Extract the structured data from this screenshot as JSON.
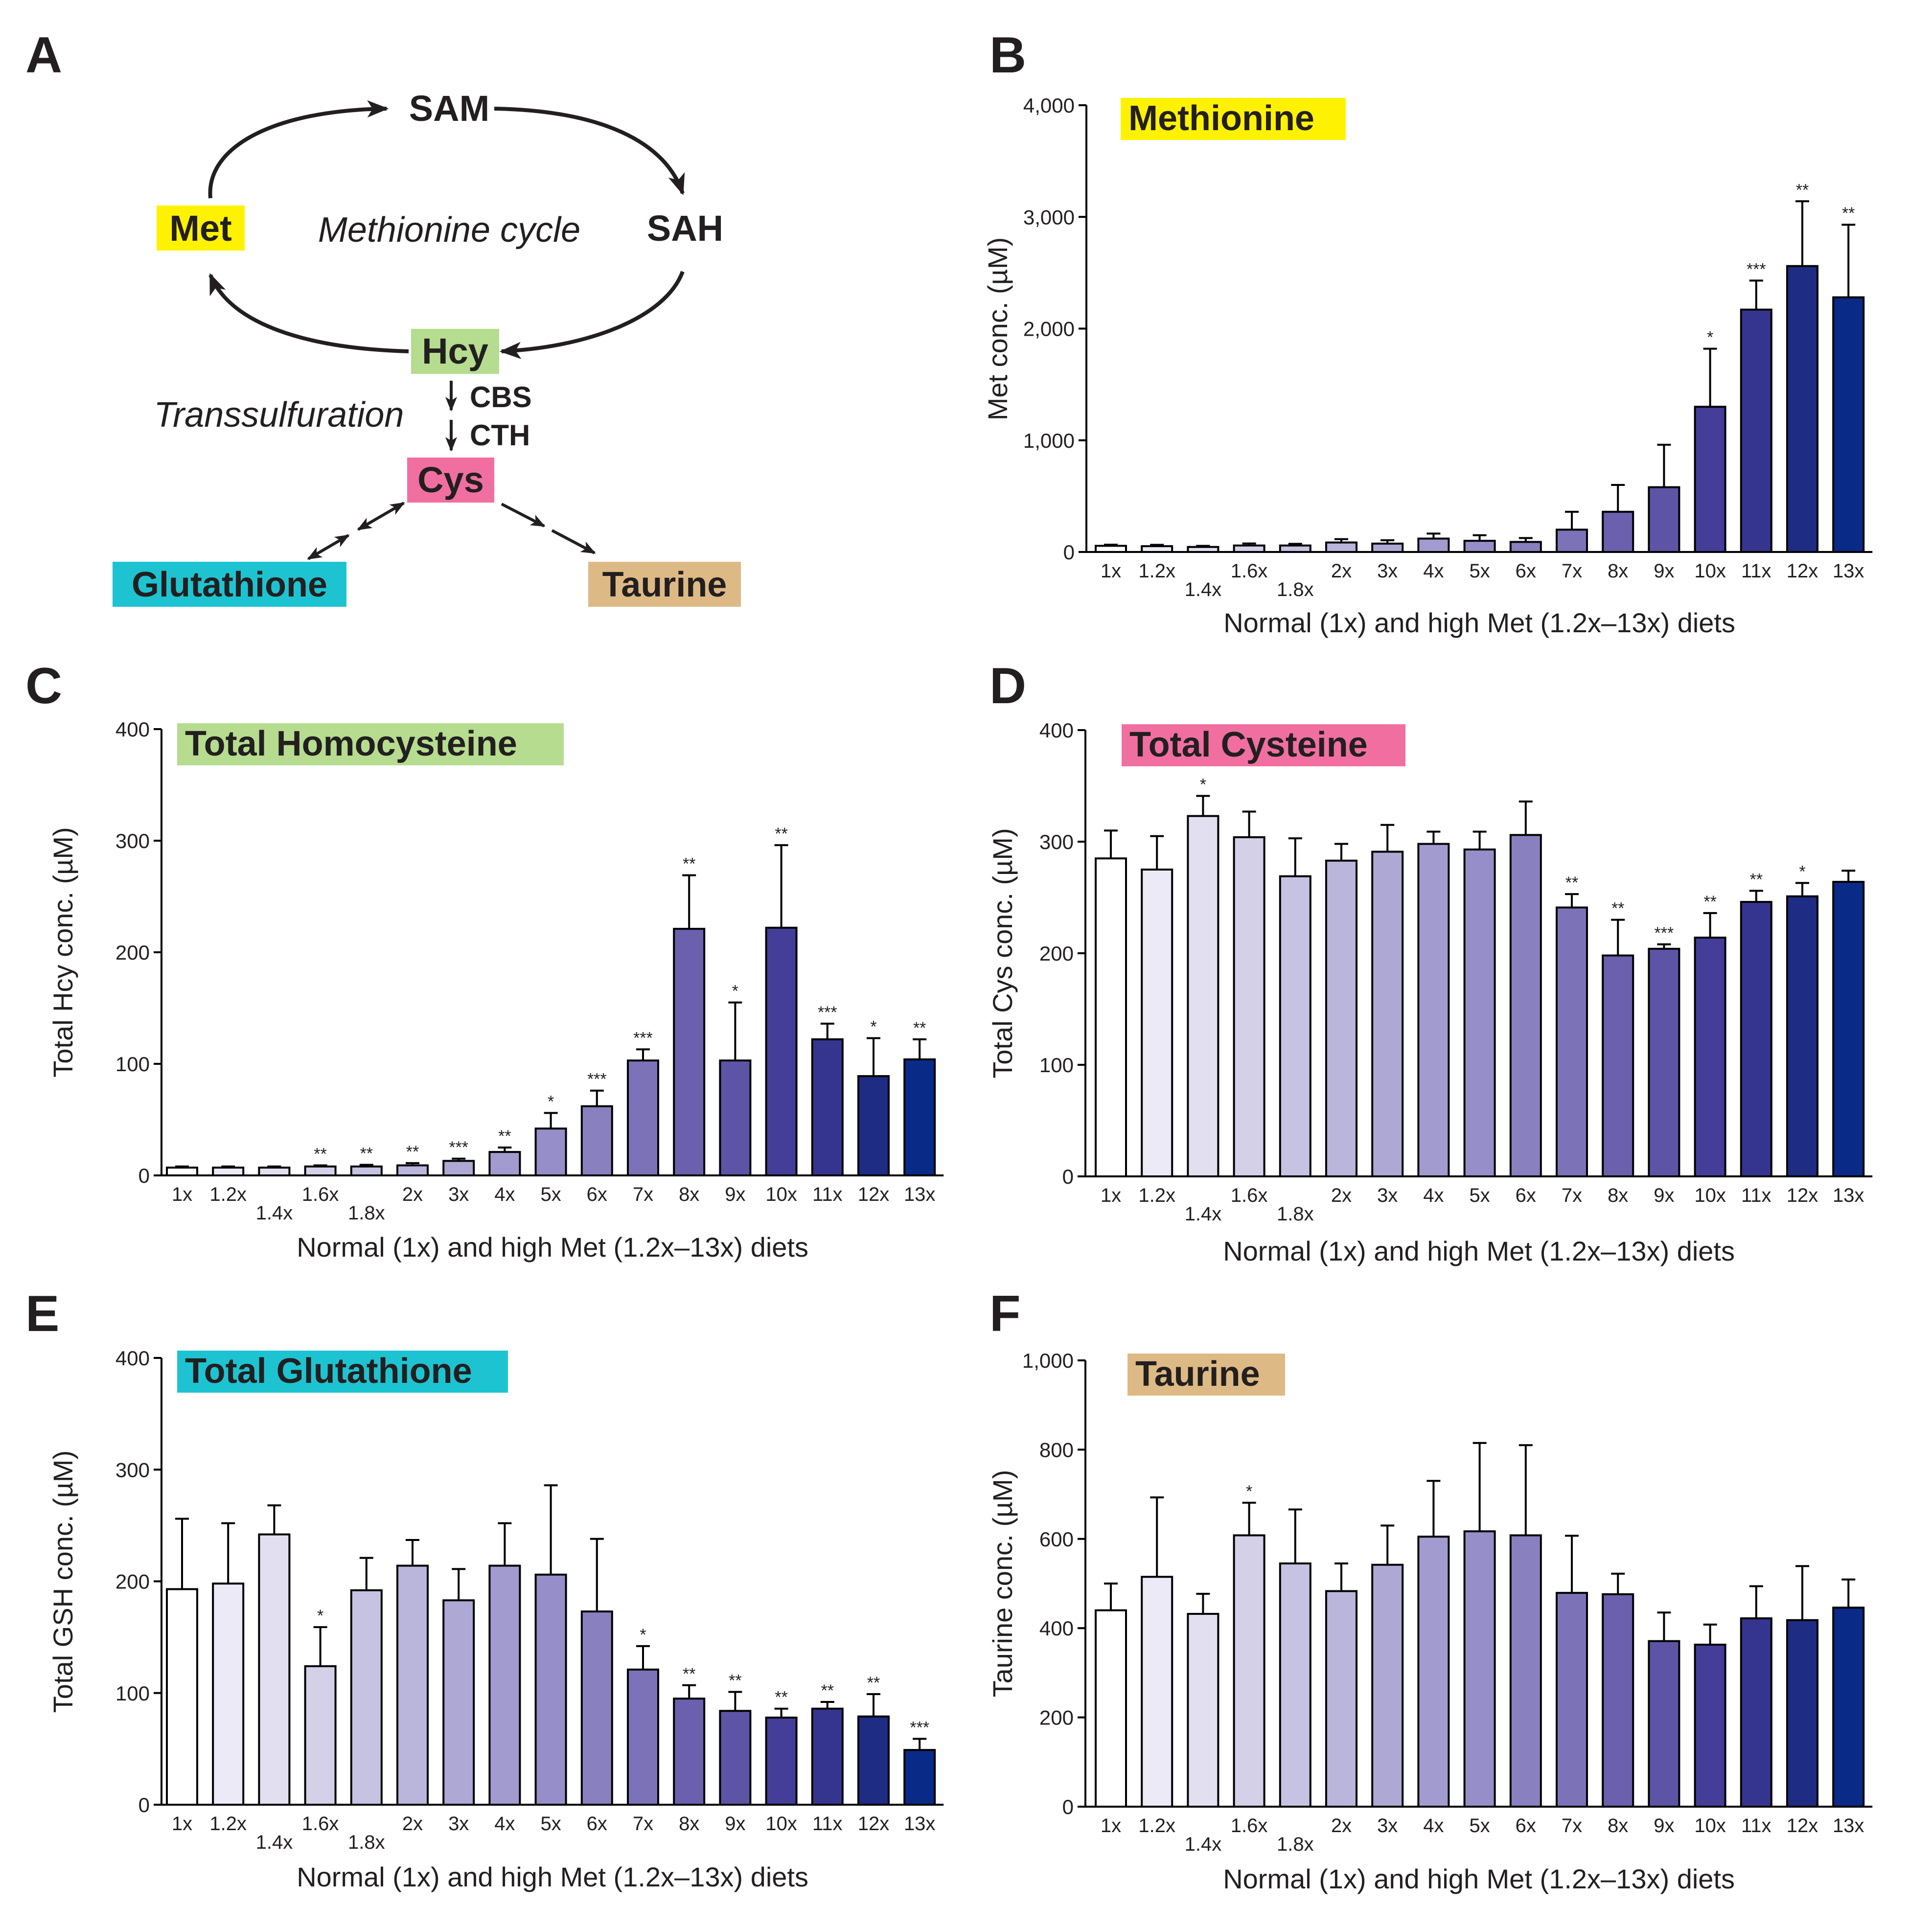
{
  "panels": {
    "A": {
      "letter": "A",
      "nodes": {
        "sam": "SAM",
        "met": "Met",
        "sah": "SAH",
        "hcy": "Hcy",
        "cys": "Cys",
        "glutathione": "Glutathione",
        "taurine": "Taurine"
      },
      "cycle_label": "Methionine cycle",
      "transsulfuration_label": "Transsulfuration",
      "enzymes": [
        "CBS",
        "CTH"
      ]
    }
  },
  "colors": {
    "met_highlight": "#fff200",
    "hcy_highlight": "#b5dc8f",
    "cys_highlight": "#f16fa0",
    "glutathione_highlight": "#1ec3d1",
    "taurine_highlight": "#ddba85",
    "bar_shades": [
      "#ffffff",
      "#eceaf6",
      "#e2e0f0",
      "#d3d0e8",
      "#c6c2e1",
      "#bab5db",
      "#aea8d5",
      "#a29bcf",
      "#958ec8",
      "#8980c0",
      "#7b72b8",
      "#6a60ad",
      "#5d54a5",
      "#443e98",
      "#35358f",
      "#1e2c84",
      "#0a2a88"
    ],
    "axis": "#000000",
    "text": "#231f20"
  },
  "chart_data": [
    {
      "panel": "B",
      "type": "bar",
      "title": "Methionine",
      "title_color": "#fff200",
      "ylabel": "Met conc. (µM)",
      "xlabel": "Normal (1x) and high Met (1.2x–13x) diets",
      "ylim": [
        0,
        4000
      ],
      "yticks": [
        "0",
        "1,000",
        "2,000",
        "3,000",
        "4,000"
      ],
      "yticks_values": [
        0,
        1000,
        2000,
        3000,
        4000
      ],
      "categories": [
        "1x",
        "1.2x",
        "1.4x",
        "1.6x",
        "1.8x",
        "2x",
        "3x",
        "4x",
        "5x",
        "6x",
        "7x",
        "8x",
        "9x",
        "10x",
        "11x",
        "12x",
        "13x"
      ],
      "values": [
        55,
        52,
        45,
        58,
        58,
        85,
        75,
        120,
        100,
        90,
        200,
        360,
        580,
        1300,
        2170,
        2560,
        2280
      ],
      "errors": [
        10,
        12,
        10,
        18,
        15,
        30,
        30,
        45,
        50,
        35,
        160,
        240,
        380,
        520,
        260,
        580,
        650
      ],
      "significance": [
        "",
        "",
        "",
        "",
        "",
        "",
        "",
        "",
        "",
        "",
        "",
        "",
        "",
        "*",
        "***",
        "**",
        "**"
      ]
    },
    {
      "panel": "C",
      "type": "bar",
      "title": "Total Homocysteine",
      "title_color": "#b5dc8f",
      "ylabel": "Total Hcy conc. (µM)",
      "xlabel": "Normal (1x) and high Met (1.2x–13x) diets",
      "ylim": [
        0,
        400
      ],
      "yticks": [
        "0",
        "100",
        "200",
        "300",
        "400"
      ],
      "yticks_values": [
        0,
        100,
        200,
        300,
        400
      ],
      "categories": [
        "1x",
        "1.2x",
        "1.4x",
        "1.6x",
        "1.8x",
        "2x",
        "3x",
        "4x",
        "5x",
        "6x",
        "7x",
        "8x",
        "9x",
        "10x",
        "11x",
        "12x",
        "13x"
      ],
      "values": [
        7,
        7,
        7,
        8,
        8,
        9,
        13,
        21,
        42,
        62,
        103,
        221,
        103,
        222,
        122,
        89,
        104
      ],
      "errors": [
        1,
        1,
        1,
        1,
        1.5,
        2,
        2,
        4,
        14,
        14,
        10,
        48,
        52,
        74,
        14,
        34,
        18
      ],
      "significance": [
        "",
        "",
        "",
        "**",
        "**",
        "**",
        "***",
        "**",
        "*",
        "***",
        "***",
        "**",
        "*",
        "**",
        "***",
        "*",
        "**"
      ]
    },
    {
      "panel": "D",
      "type": "bar",
      "title": "Total Cysteine",
      "title_color": "#f16fa0",
      "ylabel": "Total Cys conc. (µM)",
      "xlabel": "Normal (1x) and high Met (1.2x–13x) diets",
      "ylim": [
        0,
        400
      ],
      "yticks": [
        "0",
        "100",
        "200",
        "300",
        "400"
      ],
      "yticks_values": [
        0,
        100,
        200,
        300,
        400
      ],
      "categories": [
        "1x",
        "1.2x",
        "1.4x",
        "1.6x",
        "1.8x",
        "2x",
        "3x",
        "4x",
        "5x",
        "6x",
        "7x",
        "8x",
        "9x",
        "10x",
        "11x",
        "12x",
        "13x"
      ],
      "values": [
        285,
        275,
        323,
        304,
        269,
        283,
        291,
        298,
        293,
        306,
        241,
        198,
        204,
        214,
        246,
        251,
        264
      ],
      "errors": [
        25,
        30,
        18,
        23,
        34,
        15,
        24,
        11,
        16,
        30,
        12,
        32,
        4,
        22,
        10,
        12,
        10
      ],
      "significance": [
        "",
        "",
        "*",
        "",
        "",
        "",
        "",
        "",
        "",
        "",
        "**",
        "**",
        "***",
        "**",
        "**",
        "*",
        ""
      ]
    },
    {
      "panel": "E",
      "type": "bar",
      "title": "Total Glutathione",
      "title_color": "#1ec3d1",
      "ylabel": "Total GSH conc. (µM)",
      "xlabel": "Normal (1x) and high Met (1.2x–13x) diets",
      "ylim": [
        0,
        400
      ],
      "yticks": [
        "0",
        "100",
        "200",
        "300",
        "400"
      ],
      "yticks_values": [
        0,
        100,
        200,
        300,
        400
      ],
      "categories": [
        "1x",
        "1.2x",
        "1.4x",
        "1.6x",
        "1.8x",
        "2x",
        "3x",
        "4x",
        "5x",
        "6x",
        "7x",
        "8x",
        "9x",
        "10x",
        "11x",
        "12x",
        "13x"
      ],
      "values": [
        193,
        198,
        242,
        124,
        192,
        214,
        183,
        214,
        206,
        173,
        121,
        95,
        84,
        78,
        86,
        79,
        49
      ],
      "errors": [
        63,
        54,
        26,
        35,
        29,
        23,
        28,
        38,
        80,
        65,
        21,
        12,
        17,
        8,
        6,
        20,
        10
      ],
      "significance": [
        "",
        "",
        "",
        "*",
        "",
        "",
        "",
        "",
        "",
        "",
        "*",
        "**",
        "**",
        "**",
        "**",
        "**",
        "***"
      ]
    },
    {
      "panel": "F",
      "type": "bar",
      "title": "Taurine",
      "title_color": "#ddba85",
      "ylabel": "Taurine conc. (µM)",
      "xlabel": "Normal (1x) and high Met (1.2x–13x) diets",
      "ylim": [
        0,
        1000
      ],
      "yticks": [
        "0",
        "200",
        "400",
        "600",
        "800",
        "1,000"
      ],
      "yticks_values": [
        0,
        200,
        400,
        600,
        800,
        1000
      ],
      "categories": [
        "1x",
        "1.2x",
        "1.4x",
        "1.6x",
        "1.8x",
        "2x",
        "3x",
        "4x",
        "5x",
        "6x",
        "7x",
        "8x",
        "9x",
        "10x",
        "11x",
        "12x",
        "13x"
      ],
      "values": [
        440,
        515,
        432,
        608,
        545,
        483,
        542,
        605,
        617,
        608,
        479,
        476,
        371,
        363,
        422,
        418,
        446
      ],
      "errors": [
        60,
        178,
        45,
        73,
        121,
        62,
        88,
        125,
        198,
        202,
        128,
        46,
        64,
        45,
        72,
        121,
        63
      ],
      "significance": [
        "",
        "",
        "",
        "*",
        "",
        "",
        "",
        "",
        "",
        "",
        "",
        "",
        "",
        "",
        "",
        "",
        ""
      ]
    }
  ]
}
